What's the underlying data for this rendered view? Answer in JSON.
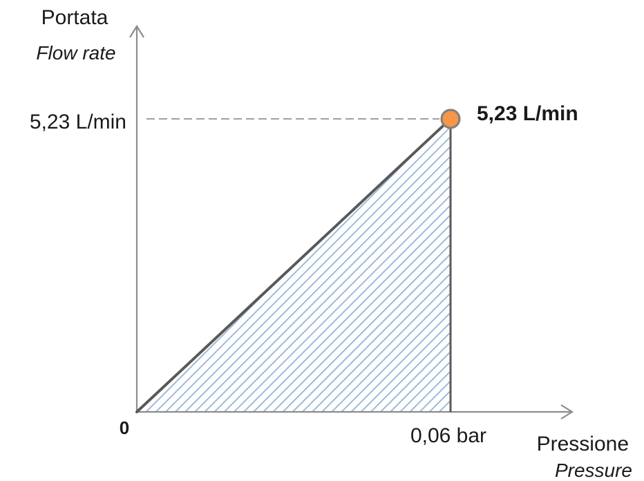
{
  "chart_data": {
    "type": "area",
    "ylabel": "Portata",
    "ylabel_en": "Flow rate",
    "xlabel": "Pressione",
    "xlabel_en": "Pressure",
    "origin_label": "0",
    "x_tick_label": "0,06 bar",
    "y_tick_label": "5,23 L/min",
    "point_label": "5,23 L/min",
    "x": [
      0,
      0.06
    ],
    "y": [
      0,
      5.23
    ],
    "point": {
      "x": 0.06,
      "y": 5.23
    },
    "x_unit": "bar",
    "y_unit": "L/min",
    "grid": false,
    "colors": {
      "axis": "#8c8c8c",
      "line": "#595959",
      "hatch": "#95b3d7",
      "point_fill": "#f79646",
      "point_stroke": "#7f7f7f",
      "dashed": "#808080"
    }
  }
}
